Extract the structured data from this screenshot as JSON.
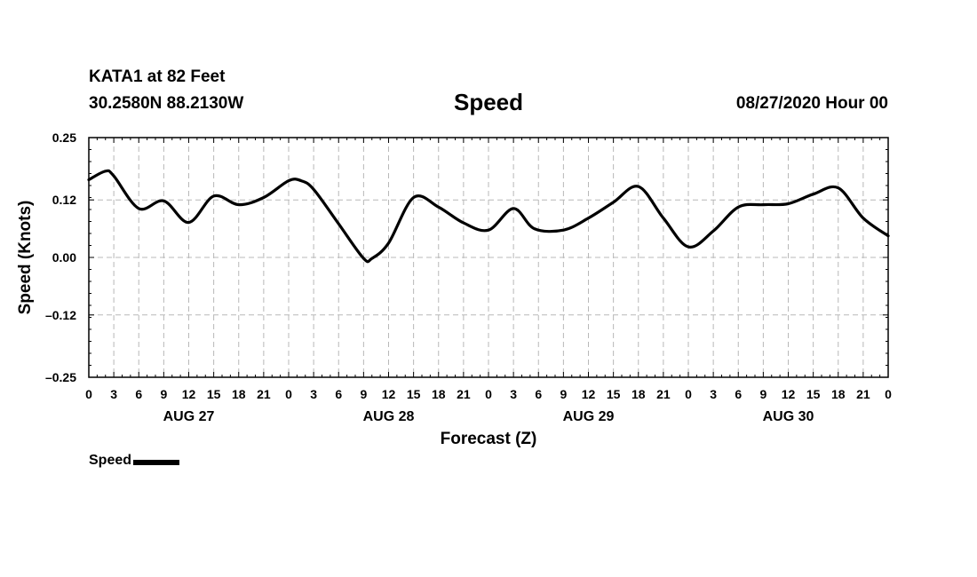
{
  "header": {
    "station": "KATA1 at 82 Feet",
    "coords": "30.2580N 88.2130W",
    "title": "Speed",
    "timestamp": "08/27/2020 Hour 00"
  },
  "chart_data": {
    "type": "line",
    "title": "Speed",
    "xlabel": "Forecast (Z)",
    "ylabel": "Speed (Knots)",
    "ylim": [
      -0.25,
      0.25
    ],
    "yticks": [
      0.25,
      0.12,
      0.0,
      -0.12,
      -0.25
    ],
    "ytick_labels": [
      "0.25",
      "0.12",
      "0.00",
      "–0.12",
      "–0.25"
    ],
    "xlim_hours": [
      0,
      96
    ],
    "xtick_labels": [
      "0",
      "3",
      "6",
      "9",
      "12",
      "15",
      "18",
      "21",
      "0",
      "3",
      "6",
      "9",
      "12",
      "15",
      "18",
      "21",
      "0",
      "3",
      "6",
      "9",
      "12",
      "15",
      "18",
      "21",
      "0",
      "3",
      "6",
      "9",
      "12",
      "15",
      "18",
      "21",
      "0"
    ],
    "day_labels": [
      "AUG 27",
      "AUG 28",
      "AUG 29",
      "AUG 30"
    ],
    "grid": true,
    "legend_position": "bottom-left",
    "series": [
      {
        "name": "Speed",
        "color": "#000000",
        "x_hours": [
          0,
          2,
          3,
          6,
          9,
          12,
          15,
          18,
          21,
          24,
          25.5,
          27,
          30,
          33,
          34,
          36,
          39,
          42,
          45,
          48,
          51,
          53.5,
          57,
          60,
          63,
          66,
          69,
          72,
          75,
          78,
          81,
          84,
          87,
          90,
          93,
          96
        ],
        "values": [
          0.162,
          0.18,
          0.17,
          0.102,
          0.118,
          0.073,
          0.128,
          0.11,
          0.125,
          0.16,
          0.16,
          0.142,
          0.07,
          -0.002,
          -0.002,
          0.03,
          0.125,
          0.105,
          0.072,
          0.057,
          0.102,
          0.06,
          0.057,
          0.082,
          0.115,
          0.148,
          0.082,
          0.022,
          0.055,
          0.105,
          0.11,
          0.112,
          0.132,
          0.145,
          0.082,
          0.045
        ]
      }
    ]
  }
}
